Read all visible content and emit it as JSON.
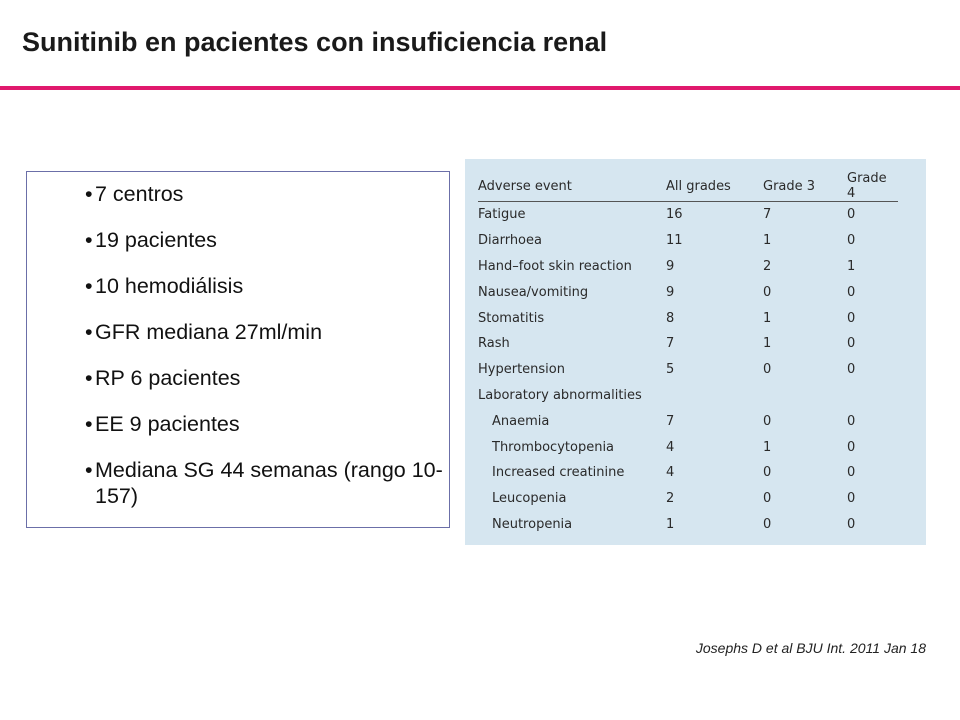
{
  "title": "Sunitinib en pacientes con insuficiencia renal",
  "bullets": [
    "7 centros",
    "19 pacientes",
    "10 hemodiálisis",
    "GFR mediana 27ml/min",
    "RP 6 pacientes",
    "EE 9 pacientes",
    "Mediana SG 44 semanas (rango 10-157)"
  ],
  "table": {
    "headers": [
      "Adverse event",
      "All grades",
      "Grade 3",
      "Grade 4"
    ],
    "rows": [
      {
        "event": "Fatigue",
        "all": "16",
        "g3": "7",
        "g4": "0"
      },
      {
        "event": "Diarrhoea",
        "all": "11",
        "g3": "1",
        "g4": "0"
      },
      {
        "event": "Hand–foot skin reaction",
        "all": "9",
        "g3": "2",
        "g4": "1"
      },
      {
        "event": "Nausea/vomiting",
        "all": "9",
        "g3": "0",
        "g4": "0"
      },
      {
        "event": "Stomatitis",
        "all": "8",
        "g3": "1",
        "g4": "0"
      },
      {
        "event": "Rash",
        "all": "7",
        "g3": "1",
        "g4": "0"
      },
      {
        "event": "Hypertension",
        "all": "5",
        "g3": "0",
        "g4": "0"
      }
    ],
    "lab_section_label": "Laboratory abnormalities",
    "lab_rows": [
      {
        "event": "Anaemia",
        "all": "7",
        "g3": "0",
        "g4": "0"
      },
      {
        "event": "Thrombocytopenia",
        "all": "4",
        "g3": "1",
        "g4": "0"
      },
      {
        "event": "Increased creatinine",
        "all": "4",
        "g3": "0",
        "g4": "0"
      },
      {
        "event": "Leucopenia",
        "all": "2",
        "g3": "0",
        "g4": "0"
      },
      {
        "event": "Neutropenia",
        "all": "1",
        "g3": "0",
        "g4": "0"
      }
    ]
  },
  "citation": "Josephs D et al BJU Int. 2011 Jan 18",
  "colors": {
    "title_rule": "#e0196d",
    "table_background": "#d6e6f0",
    "box_border": "#6b6fa8"
  }
}
